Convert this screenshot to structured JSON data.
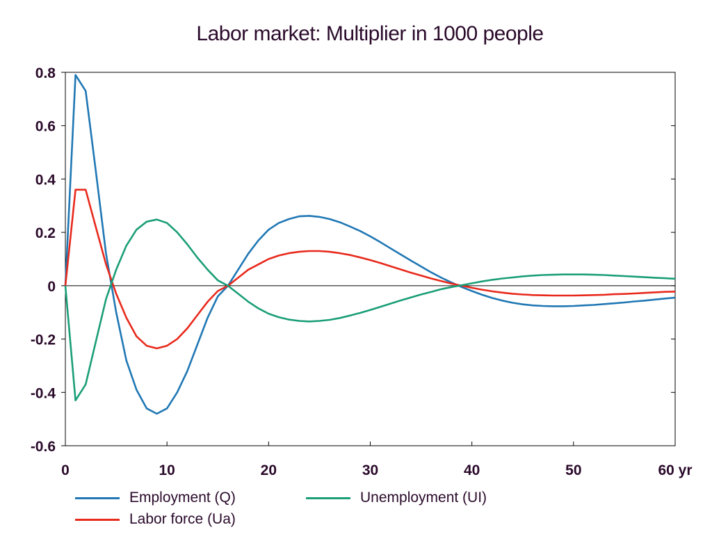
{
  "chart_data": {
    "type": "line",
    "title": "Labor market: Multiplier in 1000 people",
    "xlabel": "",
    "ylabel": "",
    "x_unit": "yr",
    "xlim": [
      0,
      60
    ],
    "ylim": [
      -0.6,
      0.8
    ],
    "x_ticks": [
      "0",
      "10",
      "20",
      "30",
      "40",
      "50",
      "60 yr"
    ],
    "y_ticks": [
      "0.8",
      "0.6",
      "0.4",
      "0.2",
      "0",
      "-0.2",
      "-0.4",
      "-0.6"
    ],
    "grid": false,
    "zero_line": true,
    "legend_position": "bottom",
    "x": [
      0,
      1,
      2,
      3,
      4,
      5,
      6,
      7,
      8,
      9,
      10,
      11,
      12,
      13,
      14,
      15,
      16,
      17,
      18,
      19,
      20,
      21,
      22,
      23,
      24,
      25,
      26,
      27,
      28,
      29,
      30,
      31,
      32,
      33,
      34,
      35,
      36,
      37,
      38,
      39,
      40,
      41,
      42,
      43,
      44,
      45,
      46,
      47,
      48,
      49,
      50,
      51,
      52,
      53,
      54,
      55,
      56,
      57,
      58,
      59,
      60
    ],
    "series": [
      {
        "name": "Employment (Q)",
        "color": "#1f77b4",
        "values": [
          0,
          0.79,
          0.73,
          0.43,
          0.12,
          -0.1,
          -0.28,
          -0.39,
          -0.46,
          -0.48,
          -0.46,
          -0.4,
          -0.32,
          -0.22,
          -0.12,
          -0.04,
          0.0,
          0.06,
          0.12,
          0.17,
          0.21,
          0.235,
          0.25,
          0.26,
          0.262,
          0.258,
          0.25,
          0.238,
          0.222,
          0.205,
          0.185,
          0.163,
          0.14,
          0.117,
          0.094,
          0.072,
          0.05,
          0.03,
          0.012,
          -0.005,
          -0.02,
          -0.034,
          -0.046,
          -0.056,
          -0.064,
          -0.07,
          -0.074,
          -0.076,
          -0.077,
          -0.077,
          -0.076,
          -0.074,
          -0.072,
          -0.069,
          -0.066,
          -0.063,
          -0.059,
          -0.056,
          -0.052,
          -0.048,
          -0.045
        ]
      },
      {
        "name": "Labor force (Ua)",
        "color": "#e8291c",
        "values": [
          0,
          0.36,
          0.36,
          0.22,
          0.08,
          -0.03,
          -0.12,
          -0.19,
          -0.225,
          -0.235,
          -0.225,
          -0.2,
          -0.16,
          -0.11,
          -0.06,
          -0.02,
          0.0,
          0.03,
          0.06,
          0.08,
          0.1,
          0.113,
          0.122,
          0.127,
          0.13,
          0.13,
          0.127,
          0.122,
          0.115,
          0.106,
          0.096,
          0.085,
          0.073,
          0.061,
          0.049,
          0.038,
          0.027,
          0.017,
          0.008,
          0.0,
          -0.008,
          -0.015,
          -0.021,
          -0.026,
          -0.03,
          -0.033,
          -0.035,
          -0.036,
          -0.037,
          -0.037,
          -0.037,
          -0.036,
          -0.035,
          -0.034,
          -0.032,
          -0.031,
          -0.029,
          -0.027,
          -0.025,
          -0.023,
          -0.022
        ]
      },
      {
        "name": "Unemployment (UI)",
        "color": "#1a9e77",
        "values": [
          0,
          -0.43,
          -0.37,
          -0.21,
          -0.05,
          0.06,
          0.15,
          0.21,
          0.24,
          0.248,
          0.235,
          0.2,
          0.155,
          0.105,
          0.06,
          0.02,
          0.0,
          -0.03,
          -0.06,
          -0.085,
          -0.105,
          -0.118,
          -0.127,
          -0.132,
          -0.134,
          -0.132,
          -0.128,
          -0.121,
          -0.112,
          -0.102,
          -0.091,
          -0.079,
          -0.067,
          -0.055,
          -0.044,
          -0.033,
          -0.023,
          -0.013,
          -0.005,
          0.002,
          0.009,
          0.016,
          0.022,
          0.027,
          0.031,
          0.035,
          0.038,
          0.04,
          0.041,
          0.042,
          0.042,
          0.042,
          0.041,
          0.04,
          0.038,
          0.036,
          0.034,
          0.032,
          0.03,
          0.028,
          0.026
        ]
      }
    ]
  }
}
